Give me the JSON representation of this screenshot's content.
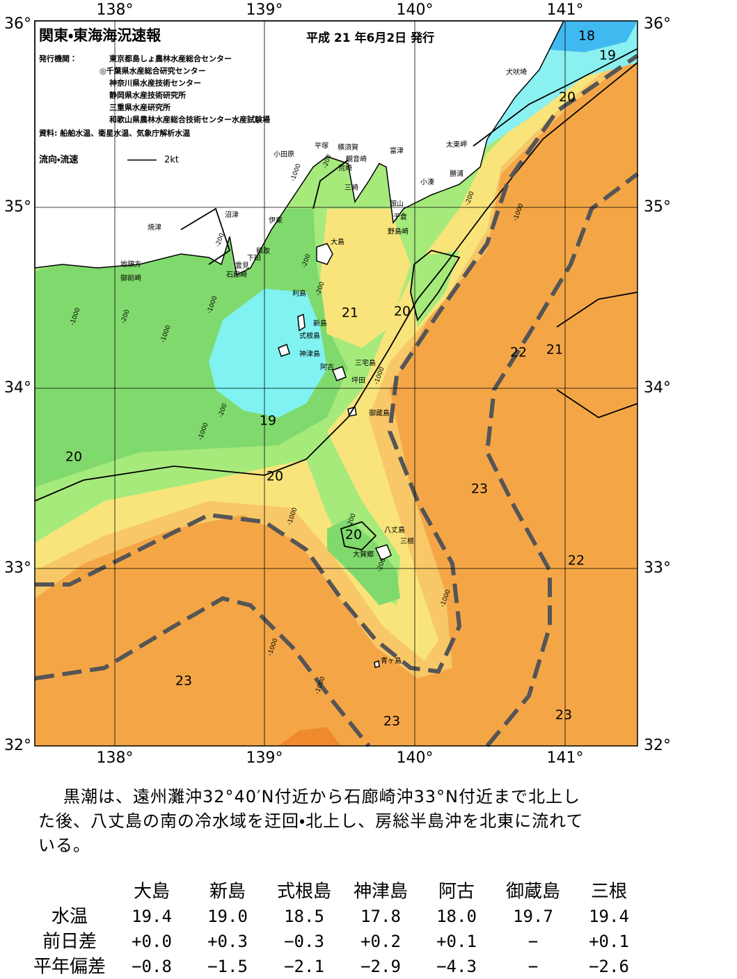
{
  "header": {
    "title": "関東・東海海況速報",
    "date": "平成 21 年6月2日 発行",
    "publisher_label": "発行機関：",
    "publishers": [
      "東京都島しょ農林水産総合センター",
      "◎千葉県水産総合研究センター",
      "神奈川県水産技術センター",
      "静岡県水産技術研究所",
      "三重県水産研究所",
      "和歌山県農林水産総合技術センター水産試験場"
    ],
    "source": "資料: 船舶水温、衛星水温、気象庁解析水温",
    "legend_label": "流向・流速",
    "legend_scale": "2kt"
  },
  "axes": {
    "lon_labels": [
      "138°",
      "139°",
      "140°",
      "141°"
    ],
    "lat_labels": [
      "36°",
      "35°",
      "34°",
      "33°",
      "32°"
    ]
  },
  "place_names": [
    "犬吠埼",
    "小田原",
    "平塚",
    "横須賀",
    "富津",
    "太東岬",
    "観音崎",
    "荒崎",
    "勝浦",
    "小湊",
    "三崎",
    "館山",
    "千倉",
    "野島崎",
    "沼津",
    "伊東",
    "焼津",
    "稲取",
    "下田",
    "雲見",
    "石廊崎",
    "地頭方",
    "御前崎",
    "大島",
    "利島",
    "新島",
    "式根島",
    "神津島",
    "三宅島",
    "阿古",
    "坪田",
    "御蔵島",
    "八丈島",
    "三根",
    "大賀郷",
    "青ヶ島"
  ],
  "isotherm_labels": [
    "18",
    "19",
    "20",
    "21",
    "20",
    "22",
    "21",
    "19",
    "20",
    "20",
    "23",
    "20",
    "22",
    "23",
    "23",
    "23"
  ],
  "depth_labels": [
    "-200",
    "-1000",
    "-200",
    "-1000",
    "-200",
    "-200",
    "-1000",
    "-200",
    "-1000",
    "-200",
    "-1000",
    "-1000",
    "-200",
    "-1000",
    "-1000",
    "-200",
    "-200",
    "-1000",
    "-1000",
    "-1000"
  ],
  "description": "黒潮は、遠州灘沖32°40′N付近から石廊崎沖33°N付近まで北上した後、八丈島の南の冷水域を迂回・北上し、房総半島沖を北東に流れている。",
  "table": {
    "columns": [
      "大島",
      "新島",
      "式根島",
      "神津島",
      "阿古",
      "御蔵島",
      "三根"
    ],
    "rows": [
      {
        "label": "水温",
        "cells": [
          "19.4",
          "19.0",
          "18.5",
          "17.8",
          "18.0",
          "19.7",
          "19.4"
        ]
      },
      {
        "label": "前日差",
        "cells": [
          "+0.0",
          "+0.3",
          "−0.3",
          "+0.2",
          "+0.1",
          "−",
          "+0.1"
        ]
      },
      {
        "label": "平年偏差",
        "cells": [
          "−0.8",
          "−1.5",
          "−2.1",
          "−2.9",
          "−4.3",
          "−",
          "−2.6"
        ]
      }
    ]
  }
}
